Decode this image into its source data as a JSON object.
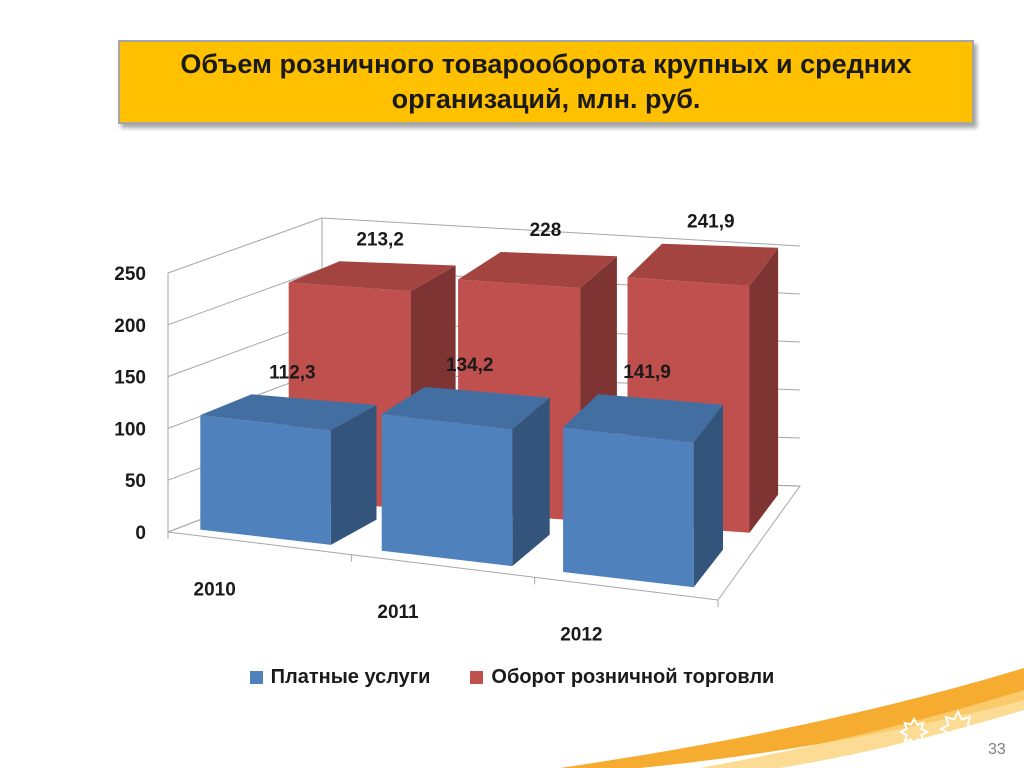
{
  "title": "Объем розничного товарооборота крупных и средних организаций, млн. руб.",
  "chart_data": {
    "type": "bar",
    "categories": [
      "2010",
      "2011",
      "2012"
    ],
    "series": [
      {
        "name": "Платные услуги",
        "values": [
          112.3,
          134.2,
          141.9
        ],
        "labels": [
          "112,3",
          "134,2",
          "141,9"
        ],
        "color": "#4f81bd"
      },
      {
        "name": "Оборот розничной торговли",
        "values": [
          213.2,
          228,
          241.9
        ],
        "labels": [
          "213,2",
          "228",
          "241,9"
        ],
        "color": "#c0504d"
      }
    ],
    "ylim": [
      0,
      250
    ],
    "yticks": [
      0,
      50,
      100,
      150,
      200,
      250
    ],
    "grid": true,
    "legend_position": "bottom",
    "style": "3d-clustered-column"
  },
  "slide_number": "33",
  "colors": {
    "title_bg": "#ffc000",
    "accent_orange": "#f5a31a"
  }
}
